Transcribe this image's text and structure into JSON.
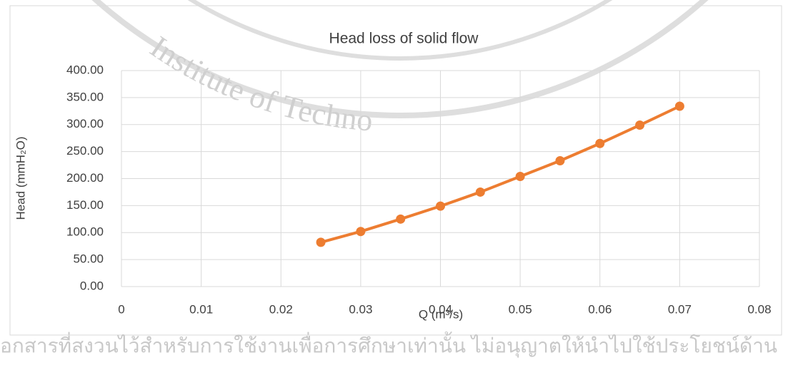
{
  "chart_data": {
    "type": "line",
    "title": "Head loss of  solid flow",
    "x_label": "Q (m³/s)",
    "y_label": "Head (mmH₂O)",
    "watermark": "Institute of Techno",
    "footer": "อกสารที่สงวนไว้สำหรับการใช้งานเพื่อการศึกษาเท่านั้น ไม่อนุญาตให้นำไปใช้ประโยชน์ด้าน",
    "x": [
      0.025,
      0.03,
      0.035,
      0.04,
      0.045,
      0.05,
      0.055,
      0.06,
      0.065,
      0.07
    ],
    "series": [
      {
        "name": "Head",
        "color": "#ed7d31",
        "values": [
          82,
          102,
          125,
          149,
          175,
          204,
          233,
          265,
          299,
          334
        ]
      }
    ],
    "xlim": [
      0,
      0.08
    ],
    "xticks": [
      0,
      0.01,
      0.02,
      0.03,
      0.04,
      0.05,
      0.06,
      0.07,
      0.08
    ],
    "ylim": [
      0,
      400
    ],
    "yticks": [
      {
        "value": 0,
        "label": "0.00"
      },
      {
        "value": 50,
        "label": "50.00"
      },
      {
        "value": 100,
        "label": "100.00"
      },
      {
        "value": 150,
        "label": "150.00"
      },
      {
        "value": 200,
        "label": "200.00"
      },
      {
        "value": 250,
        "label": "250.00"
      },
      {
        "value": 300,
        "label": "300.00"
      },
      {
        "value": 350,
        "label": "350.00"
      },
      {
        "value": 400,
        "label": "400.00"
      }
    ],
    "grid": true
  }
}
